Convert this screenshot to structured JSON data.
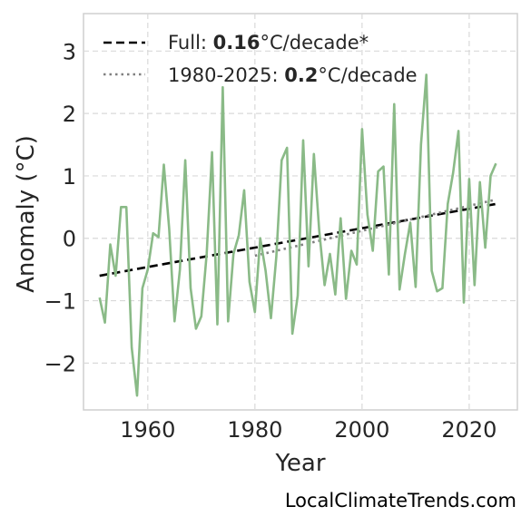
{
  "chart_data": {
    "type": "line",
    "title": "",
    "xlabel": "Year",
    "ylabel": "Anomaly (°C)",
    "xlim": [
      1948,
      2029
    ],
    "ylim": [
      -2.75,
      3.6
    ],
    "xticks": [
      1960,
      1980,
      2000,
      2020
    ],
    "yticks": [
      3,
      2,
      1,
      0,
      -1,
      -2
    ],
    "ytick_labels": [
      "3",
      "2",
      "1",
      "0",
      "−1",
      "−2"
    ],
    "grid": true,
    "legend_position": "top-left",
    "series": [
      {
        "color": "#8aba87",
        "x": [
          1951,
          1952,
          1953,
          1954,
          1955,
          1956,
          1957,
          1958,
          1959,
          1960,
          1961,
          1962,
          1963,
          1964,
          1965,
          1966,
          1967,
          1968,
          1969,
          1970,
          1971,
          1972,
          1973,
          1974,
          1975,
          1976,
          1977,
          1978,
          1979,
          1980,
          1981,
          1982,
          1983,
          1984,
          1985,
          1986,
          1987,
          1988,
          1989,
          1990,
          1991,
          1992,
          1993,
          1994,
          1995,
          1996,
          1997,
          1998,
          1999,
          2000,
          2001,
          2002,
          2003,
          2004,
          2005,
          2006,
          2007,
          2008,
          2009,
          2010,
          2011,
          2012,
          2013,
          2014,
          2015,
          2016,
          2017,
          2018,
          2019,
          2020,
          2021,
          2022,
          2023,
          2024,
          2025
        ],
        "y": [
          -0.95,
          -1.35,
          -0.1,
          -0.6,
          0.5,
          0.5,
          -1.75,
          -2.52,
          -0.8,
          -0.5,
          0.08,
          0.02,
          1.18,
          0.15,
          -1.33,
          -0.5,
          1.25,
          -0.8,
          -1.45,
          -1.25,
          -0.25,
          1.38,
          -1.38,
          2.42,
          -1.33,
          -0.25,
          0.05,
          0.77,
          -0.7,
          -1.18,
          0.0,
          -0.52,
          -1.28,
          -0.3,
          1.25,
          1.45,
          -1.53,
          -0.92,
          1.57,
          -0.45,
          1.35,
          0.12,
          -0.75,
          -0.25,
          -0.9,
          0.32,
          -0.97,
          -0.2,
          -0.42,
          1.75,
          0.38,
          -0.2,
          1.07,
          1.15,
          -0.58,
          2.15,
          -0.82,
          -0.25,
          0.25,
          -0.78,
          1.5,
          2.62,
          -0.52,
          -0.85,
          -0.8,
          0.55,
          1.05,
          1.72,
          -1.03,
          0.95,
          -0.75,
          0.9,
          -0.15,
          1.0,
          1.2
        ]
      }
    ],
    "trend_lines": [
      {
        "label_prefix": "Full: ",
        "label_value": "0.16",
        "label_suffix": "°C/decade*",
        "style": "dashed",
        "color": "#000000",
        "x": [
          1951,
          2025
        ],
        "y": [
          -0.6,
          0.55
        ]
      },
      {
        "label_prefix": "1980-2025: ",
        "label_value": "0.2",
        "label_suffix": "°C/decade",
        "style": "dotted",
        "color": "#808080",
        "x": [
          1980,
          2025
        ],
        "y": [
          -0.28,
          0.62
        ]
      }
    ]
  },
  "credit": "LocalClimateTrends.com"
}
